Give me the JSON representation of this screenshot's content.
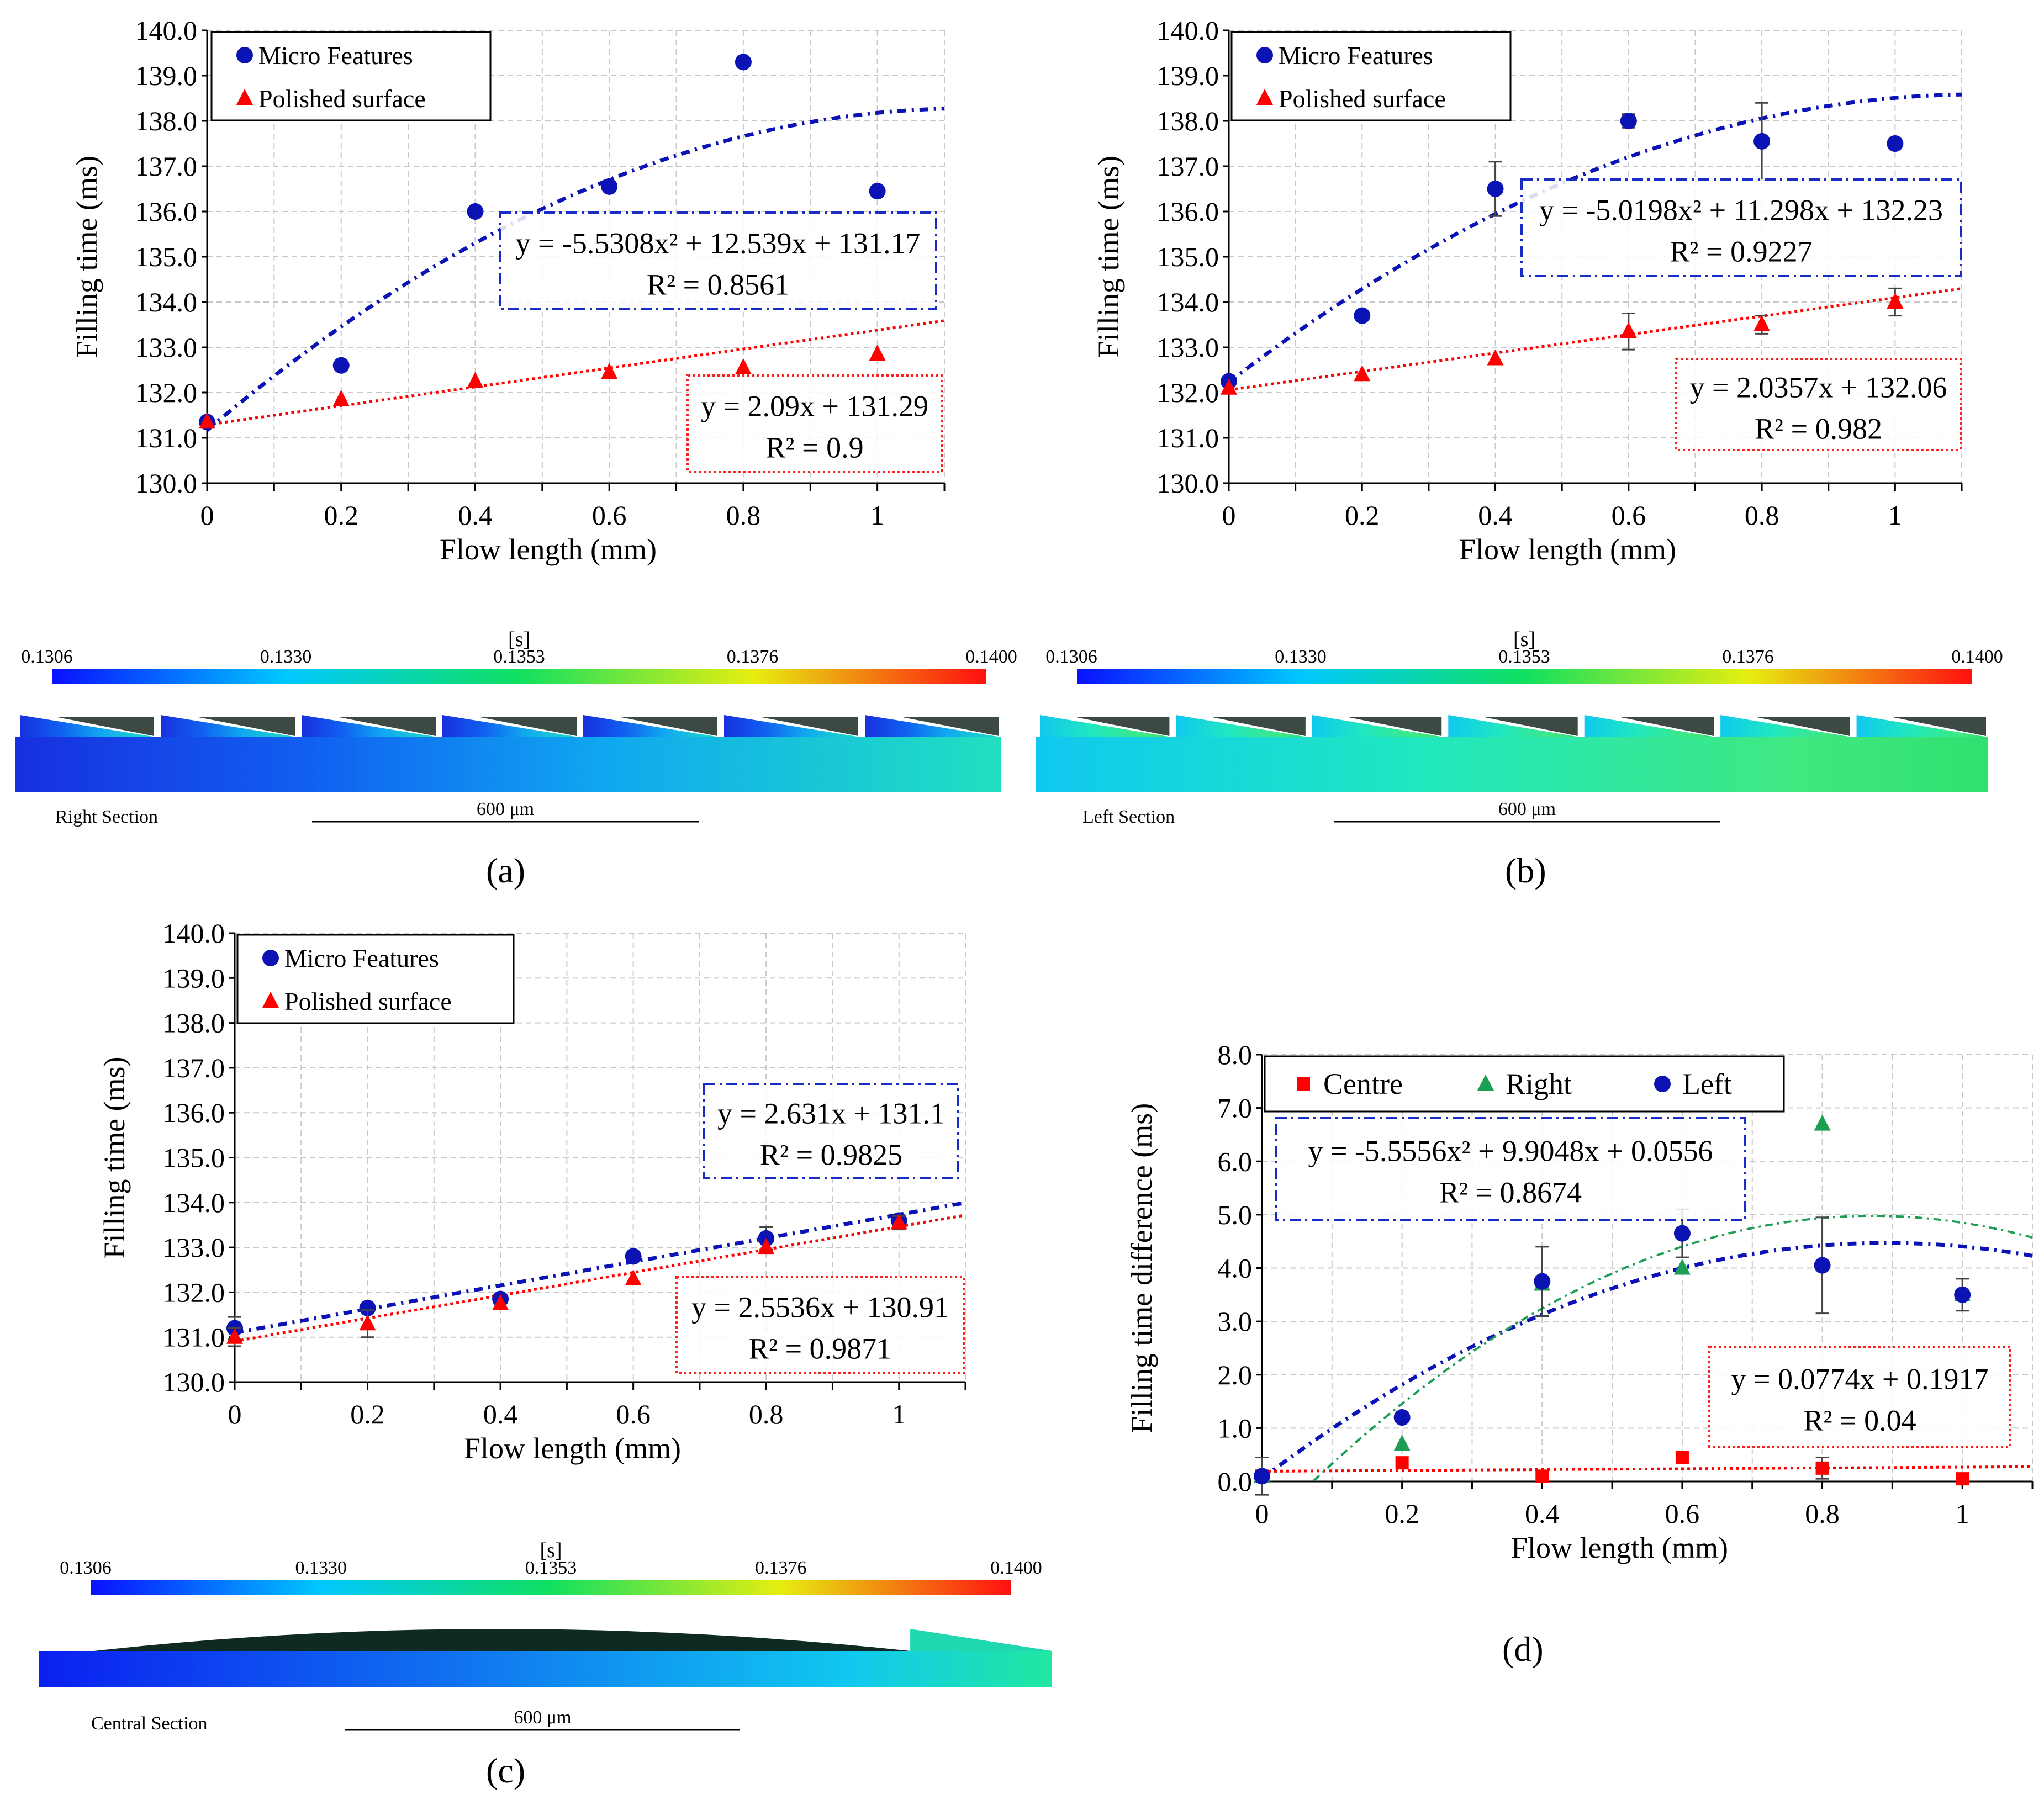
{
  "chart_data": [
    {
      "id": "a",
      "type": "scatter",
      "xlabel": "Flow length (mm)",
      "ylabel": "Filling time  (ms)",
      "xlim": [
        0,
        1.1
      ],
      "ylim": [
        130,
        140
      ],
      "xticks": [
        "0",
        "0.2",
        "0.4",
        "0.6",
        "0.8",
        "1"
      ],
      "yticks": [
        "130.0",
        "131.0",
        "132.0",
        "133.0",
        "134.0",
        "135.0",
        "136.0",
        "137.0",
        "138.0",
        "139.0",
        "140.0"
      ],
      "grid": true,
      "legend": {
        "position": "top-left",
        "entries": [
          "Micro Features",
          "Polished surface"
        ]
      },
      "series": [
        {
          "name": "Micro Features",
          "marker": "circle",
          "color": "#0b13b5",
          "x": [
            0,
            0.2,
            0.4,
            0.6,
            0.8,
            1
          ],
          "y": [
            131.35,
            132.6,
            136.0,
            136.55,
            139.3,
            136.45
          ]
        },
        {
          "name": "Polished surface",
          "marker": "triangle",
          "color": "#ff0000",
          "x": [
            0,
            0.2,
            0.4,
            0.6,
            0.8,
            1
          ],
          "y": [
            131.35,
            131.85,
            132.25,
            132.45,
            132.55,
            132.85
          ]
        }
      ],
      "fits": [
        {
          "kind": "poly2",
          "a": -5.5308,
          "b": 12.539,
          "c": 131.17,
          "color": "#0b13b5",
          "style": "dashdot",
          "equation": "y = -5.5308x² + 12.539x + 131.17",
          "r2": "R² = 0.8561"
        },
        {
          "kind": "linear",
          "a": 0,
          "b": 2.09,
          "c": 131.29,
          "color": "#ff0000",
          "style": "dotted",
          "equation": "y = 2.09x + 131.29",
          "r2": "R² = 0.9"
        }
      ],
      "caption": "(a)",
      "colorbar": {
        "unit": "[s]",
        "ticks": [
          "0.1306",
          "0.1330",
          "0.1353",
          "0.1376",
          "0.1400"
        ]
      },
      "section_label": "Right Section",
      "scale_label": "600 μm"
    },
    {
      "id": "b",
      "type": "scatter",
      "xlabel": "Flow length (mm)",
      "ylabel": "Filling time  (ms)",
      "xlim": [
        0,
        1.1
      ],
      "ylim": [
        130,
        140
      ],
      "xticks": [
        "0",
        "0.2",
        "0.4",
        "0.6",
        "0.8",
        "1"
      ],
      "yticks": [
        "130.0",
        "131.0",
        "132.0",
        "133.0",
        "134.0",
        "135.0",
        "136.0",
        "137.0",
        "138.0",
        "139.0",
        "140.0"
      ],
      "grid": true,
      "legend": {
        "position": "top-left",
        "entries": [
          "Micro Features",
          "Polished surface"
        ]
      },
      "series": [
        {
          "name": "Micro Features",
          "marker": "circle",
          "color": "#0b13b5",
          "x": [
            0,
            0.2,
            0.4,
            0.6,
            0.8,
            1
          ],
          "y": [
            132.25,
            133.7,
            136.5,
            138.0,
            137.55,
            137.5
          ],
          "err": [
            0,
            0,
            0.6,
            0.15,
            0.85,
            0.1
          ]
        },
        {
          "name": "Polished surface",
          "marker": "triangle",
          "color": "#ff0000",
          "x": [
            0,
            0.2,
            0.4,
            0.6,
            0.8,
            1
          ],
          "y": [
            132.1,
            132.4,
            132.75,
            133.35,
            133.5,
            134.0
          ],
          "err": [
            0,
            0,
            0,
            0.4,
            0.2,
            0.3
          ]
        }
      ],
      "fits": [
        {
          "kind": "poly2",
          "a": -5.0198,
          "b": 11.298,
          "c": 132.23,
          "color": "#0b13b5",
          "style": "dashdot",
          "equation": "y = -5.0198x² + 11.298x + 132.23",
          "r2": "R² = 0.9227"
        },
        {
          "kind": "linear",
          "a": 0,
          "b": 2.0357,
          "c": 132.06,
          "color": "#ff0000",
          "style": "dotted",
          "equation": "y = 2.0357x + 132.06",
          "r2": "R² = 0.982"
        }
      ],
      "caption": "(b)",
      "colorbar": {
        "unit": "[s]",
        "ticks": [
          "0.1306",
          "0.1330",
          "0.1353",
          "0.1376",
          "0.1400"
        ]
      },
      "section_label": "Left Section",
      "scale_label": "600 μm"
    },
    {
      "id": "c",
      "type": "scatter",
      "xlabel": "Flow length (mm)",
      "ylabel": "Filling time  (ms)",
      "xlim": [
        0,
        1.1
      ],
      "ylim": [
        130,
        140
      ],
      "xticks": [
        "0",
        "0.2",
        "0.4",
        "0.6",
        "0.8",
        "1"
      ],
      "yticks": [
        "130.0",
        "131.0",
        "132.0",
        "133.0",
        "134.0",
        "135.0",
        "136.0",
        "137.0",
        "138.0",
        "139.0",
        "140.0"
      ],
      "grid": true,
      "legend": {
        "position": "top-left",
        "entries": [
          "Micro Features",
          "Polished surface"
        ]
      },
      "series": [
        {
          "name": "Micro Features",
          "marker": "circle",
          "color": "#0b13b5",
          "x": [
            0,
            0.2,
            0.4,
            0.6,
            0.8,
            1
          ],
          "y": [
            131.2,
            131.65,
            131.85,
            132.8,
            133.2,
            133.6
          ],
          "err": [
            0.25,
            0,
            0,
            0,
            0.25,
            0
          ]
        },
        {
          "name": "Polished surface",
          "marker": "triangle",
          "color": "#ff0000",
          "x": [
            0,
            0.2,
            0.4,
            0.6,
            0.8,
            1
          ],
          "y": [
            131.0,
            131.3,
            131.75,
            132.3,
            133.0,
            133.55
          ],
          "err": [
            0.2,
            0.3,
            0,
            0,
            0,
            0.15
          ]
        }
      ],
      "fits": [
        {
          "kind": "linear",
          "a": 0,
          "b": 2.631,
          "c": 131.1,
          "color": "#0b13b5",
          "style": "dashdot",
          "equation": "y = 2.631x + 131.1",
          "r2": "R² = 0.9825"
        },
        {
          "kind": "linear",
          "a": 0,
          "b": 2.5536,
          "c": 130.91,
          "color": "#ff0000",
          "style": "dotted",
          "equation": "y = 2.5536x + 130.91",
          "r2": "R² = 0.9871"
        }
      ],
      "caption": "(c)",
      "colorbar": {
        "unit": "[s]",
        "ticks": [
          "0.1306",
          "0.1330",
          "0.1353",
          "0.1376",
          "0.1400"
        ]
      },
      "section_label": "Central Section",
      "scale_label": "600 μm"
    },
    {
      "id": "d",
      "type": "scatter",
      "xlabel": "Flow length (mm)",
      "ylabel": "Filling time difference  (ms)",
      "xlim": [
        0,
        1.1
      ],
      "ylim": [
        0,
        8
      ],
      "xticks": [
        "0",
        "0.2",
        "0.4",
        "0.6",
        "0.8",
        "1"
      ],
      "yticks": [
        "0.0",
        "1.0",
        "2.0",
        "3.0",
        "4.0",
        "5.0",
        "6.0",
        "7.0",
        "8.0"
      ],
      "grid": true,
      "legend": {
        "position": "top-left",
        "entries": [
          "Centre",
          "Right",
          "Left"
        ]
      },
      "series": [
        {
          "name": "Centre",
          "marker": "square",
          "color": "#ff0000",
          "x": [
            0,
            0.2,
            0.4,
            0.6,
            0.8,
            1
          ],
          "y": [
            0.1,
            0.35,
            0.1,
            0.45,
            0.25,
            0.05
          ],
          "err": [
            0,
            0,
            0,
            0.1,
            0.2,
            0
          ]
        },
        {
          "name": "Right",
          "marker": "triangle",
          "color": "#1c9e55",
          "x": [
            0,
            0.2,
            0.4,
            0.6,
            0.8,
            1
          ],
          "y": [
            0.1,
            0.7,
            3.7,
            4.0,
            6.7,
            3.5
          ],
          "err": [
            0,
            0,
            0,
            0,
            0,
            0
          ]
        },
        {
          "name": "Left",
          "marker": "circle",
          "color": "#0b13b5",
          "x": [
            0,
            0.2,
            0.4,
            0.6,
            0.8,
            1
          ],
          "y": [
            0.1,
            1.2,
            3.75,
            4.65,
            4.05,
            3.5
          ],
          "err": [
            0.35,
            0,
            0.65,
            0.45,
            0.9,
            0.3
          ]
        }
      ],
      "fits": [
        {
          "kind": "poly2",
          "a": -5.5556,
          "b": 9.9048,
          "c": 0.0556,
          "color": "#0b13b5",
          "style": "dashdot",
          "equation": "y = -5.5556x² + 9.9048x + 0.0556",
          "r2": "R² = 0.8674"
        },
        {
          "kind": "linear",
          "a": 0,
          "b": 0.0774,
          "c": 0.1917,
          "color": "#ff0000",
          "style": "dotted",
          "equation": "y = 0.0774x + 0.1917",
          "r2": "R² = 0.04"
        },
        {
          "kind": "poly2",
          "a": -7.8,
          "b": 13.6,
          "c": -0.95,
          "color": "#1c9e55",
          "style": "dashdot-thin",
          "equation": "",
          "r2": ""
        }
      ],
      "caption": "(d)"
    }
  ]
}
